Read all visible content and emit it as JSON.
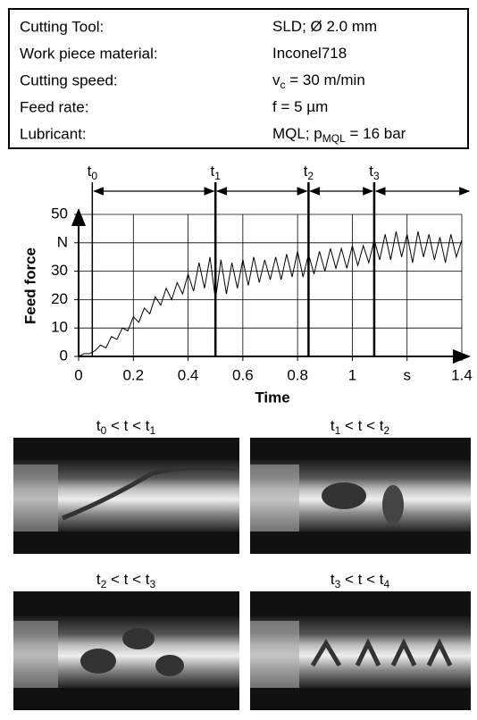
{
  "table": {
    "rows": [
      {
        "label": "Cutting Tool:",
        "value": [
          {
            "text": "SLD; Ø 2.0 mm"
          }
        ]
      },
      {
        "label": "Work piece material:",
        "value": [
          {
            "text": "Inconel718"
          }
        ]
      },
      {
        "label": "Cutting speed:",
        "value": [
          {
            "text": "v"
          },
          {
            "sub": "c"
          },
          {
            "text": " = 30 m/min"
          }
        ]
      },
      {
        "label": "Feed rate:",
        "value": [
          {
            "text": "f = 5 µm"
          }
        ]
      },
      {
        "label": "Lubricant:",
        "value": [
          {
            "text": "MQL; p"
          },
          {
            "sub": "MQL"
          },
          {
            "text": " = 16 bar"
          }
        ]
      }
    ]
  },
  "chart_data": {
    "type": "line",
    "xlabel": "Time",
    "ylabel": "Feed force",
    "xlim": [
      0,
      1.4
    ],
    "ylim": [
      0,
      50
    ],
    "xticks": [
      0,
      0.2,
      0.4,
      0.6,
      0.8,
      1,
      {
        "value": 1.2,
        "label": "s"
      },
      1.4
    ],
    "yticks": [
      0,
      10,
      20,
      30,
      {
        "value": 40,
        "label": "N"
      },
      50
    ],
    "grid": true,
    "markers": [
      {
        "x": 0.05,
        "label": [
          {
            "text": "t"
          },
          {
            "sub": "0"
          }
        ]
      },
      {
        "x": 0.5,
        "label": [
          {
            "text": "t"
          },
          {
            "sub": "1"
          }
        ]
      },
      {
        "x": 0.84,
        "label": [
          {
            "text": "t"
          },
          {
            "sub": "2"
          }
        ]
      },
      {
        "x": 1.08,
        "label": [
          {
            "text": "t"
          },
          {
            "sub": "3"
          }
        ]
      }
    ],
    "x": [
      0,
      0.02,
      0.04,
      0.06,
      0.08,
      0.1,
      0.12,
      0.14,
      0.16,
      0.18,
      0.2,
      0.22,
      0.24,
      0.26,
      0.28,
      0.3,
      0.32,
      0.34,
      0.36,
      0.38,
      0.4,
      0.42,
      0.44,
      0.46,
      0.48,
      0.5,
      0.52,
      0.54,
      0.56,
      0.58,
      0.6,
      0.62,
      0.64,
      0.66,
      0.68,
      0.7,
      0.72,
      0.74,
      0.76,
      0.78,
      0.8,
      0.82,
      0.84,
      0.86,
      0.88,
      0.9,
      0.92,
      0.94,
      0.96,
      0.98,
      1,
      1.02,
      1.04,
      1.06,
      1.08,
      1.1,
      1.12,
      1.14,
      1.16,
      1.18,
      1.2,
      1.22,
      1.24,
      1.26,
      1.28,
      1.3,
      1.32,
      1.34,
      1.36,
      1.38,
      1.4
    ],
    "series": [
      {
        "color": "#000000",
        "values": [
          0,
          1,
          1,
          2,
          4,
          3,
          7,
          6,
          10,
          9,
          14,
          12,
          17,
          15,
          21,
          18,
          24,
          20,
          26,
          22,
          29,
          23,
          33,
          24,
          35,
          20,
          34,
          22,
          33,
          24,
          34,
          25,
          35,
          26,
          34,
          27,
          35,
          27,
          36,
          28,
          37,
          28,
          36,
          29,
          37,
          30,
          38,
          31,
          38,
          31,
          39,
          32,
          39,
          33,
          41,
          34,
          43,
          34,
          44,
          35,
          43,
          33,
          44,
          35,
          43,
          34,
          42,
          33,
          43,
          35,
          41
        ]
      }
    ]
  },
  "images": [
    {
      "caption": [
        {
          "text": "t"
        },
        {
          "sub": "0"
        },
        {
          "text": " < t < t"
        },
        {
          "sub": "1"
        }
      ]
    },
    {
      "caption": [
        {
          "text": "t"
        },
        {
          "sub": "1"
        },
        {
          "text": " < t < t"
        },
        {
          "sub": "2"
        }
      ]
    },
    {
      "caption": [
        {
          "text": "t"
        },
        {
          "sub": "2"
        },
        {
          "text": " < t < t"
        },
        {
          "sub": "3"
        }
      ]
    },
    {
      "caption": [
        {
          "text": "t"
        },
        {
          "sub": "3"
        },
        {
          "text": " < t < t"
        },
        {
          "sub": "4"
        }
      ]
    }
  ]
}
